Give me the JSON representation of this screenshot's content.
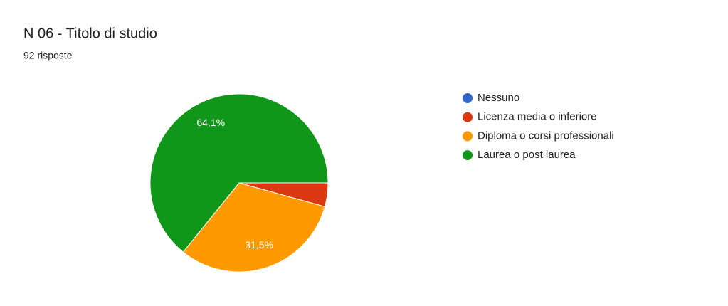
{
  "chart_data": {
    "type": "pie",
    "title": "N 06 - Titolo di studio",
    "subtitle": "92 risposte",
    "categories": [
      "Nessuno",
      "Licenza media o inferiore",
      "Diploma o corsi professionali",
      "Laurea o post laurea"
    ],
    "values": [
      0,
      4.3,
      31.5,
      64.1
    ],
    "value_labels": [
      null,
      null,
      "31,5%",
      "64,1%"
    ],
    "colors": [
      "#3366cc",
      "#dc3912",
      "#ff9900",
      "#109618"
    ],
    "legend": "right"
  }
}
